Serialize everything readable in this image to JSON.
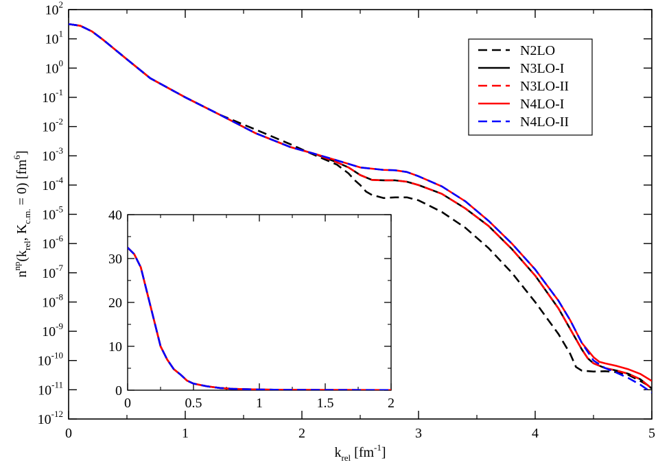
{
  "chart_data": {
    "type": "line",
    "title": "",
    "xlabel": "k",
    "xlabel_sub": "rel",
    "xlabel_unit_base": " [fm",
    "xlabel_unit_sup": "-1",
    "xlabel_unit_close": "]",
    "ylabel_parts": [
      "n",
      "np",
      "(k",
      "rel",
      ", K",
      "c.m.",
      " = 0) [fm",
      "6",
      "]"
    ],
    "x_scale": "linear",
    "y_scale": "log",
    "xlim": [
      0,
      5
    ],
    "ylim": [
      1e-12,
      100
    ],
    "x_ticks": [
      "0",
      "1",
      "2",
      "3",
      "4",
      "5"
    ],
    "y_tick_mantissa": "10",
    "y_tick_exponents": [
      "-12",
      "-11",
      "-10",
      "-9",
      "-8",
      "-7",
      "-6",
      "-5",
      "-4",
      "-3",
      "-2",
      "-1",
      "0",
      "1",
      "2"
    ],
    "legend_position": "top-right",
    "series": [
      {
        "name": "N2LO",
        "color": "#000000",
        "dashed": true,
        "x": [
          0,
          0.1,
          0.2,
          0.3,
          0.5,
          0.7,
          1.0,
          1.3,
          1.6,
          1.9,
          2.1,
          2.3,
          2.4,
          2.45,
          2.5,
          2.55,
          2.6,
          2.7,
          2.8,
          2.9,
          3.0,
          3.2,
          3.4,
          3.6,
          3.8,
          4.0,
          4.2,
          4.3,
          4.35,
          4.4,
          4.5,
          4.6,
          4.7,
          4.8,
          4.9,
          5.0
        ],
        "y": [
          32,
          28,
          18,
          9,
          2,
          0.45,
          0.1,
          0.025,
          0.008,
          0.0025,
          0.0011,
          0.0005,
          0.00025,
          0.00015,
          0.0001,
          6e-05,
          4.6e-05,
          3.6e-05,
          3.8e-05,
          3.8e-05,
          3e-05,
          1.2e-05,
          3.5e-06,
          7e-07,
          1e-07,
          1e-08,
          8e-10,
          1.7e-10,
          6e-11,
          4.5e-11,
          4.2e-11,
          4.3e-11,
          4e-11,
          3.2e-11,
          2e-11,
          1.2e-11
        ]
      },
      {
        "name": "N3LO-I",
        "color": "#000000",
        "dashed": false,
        "x": [
          0,
          0.1,
          0.2,
          0.3,
          0.5,
          0.7,
          1.0,
          1.3,
          1.6,
          1.9,
          2.1,
          2.3,
          2.4,
          2.5,
          2.6,
          2.7,
          2.8,
          2.9,
          3.0,
          3.2,
          3.4,
          3.6,
          3.8,
          4.0,
          4.2,
          4.3,
          4.4,
          4.45,
          4.5,
          4.6,
          4.7,
          4.8,
          4.9,
          5.0
        ],
        "y": [
          32,
          28,
          18,
          9,
          2,
          0.45,
          0.1,
          0.025,
          0.006,
          0.002,
          0.0012,
          0.0006,
          0.0004,
          0.00022,
          0.00015,
          0.000145,
          0.000145,
          0.00013,
          0.0001,
          5e-05,
          1.6e-05,
          4e-06,
          6.5e-07,
          8e-08,
          6e-09,
          1.2e-09,
          2.4e-10,
          1.2e-10,
          8e-11,
          5.5e-11,
          4.5e-11,
          3.5e-11,
          2.3e-11,
          1.1e-11
        ]
      },
      {
        "name": "N3LO-II",
        "color": "#ff0000",
        "dashed": true,
        "x": [
          0,
          0.1,
          0.2,
          0.3,
          0.5,
          0.7,
          1.0,
          1.3,
          1.6,
          1.9,
          2.1,
          2.3,
          2.4,
          2.5,
          2.6,
          2.7,
          2.8,
          2.9,
          3.0,
          3.2,
          3.4,
          3.6,
          3.8,
          4.0,
          4.2,
          4.3,
          4.4,
          4.45,
          4.5,
          4.6,
          4.7,
          4.8,
          4.9,
          5.0
        ],
        "y": [
          32,
          28,
          18,
          9,
          2,
          0.45,
          0.1,
          0.025,
          0.006,
          0.002,
          0.0012,
          0.0006,
          0.0004,
          0.00022,
          0.00015,
          0.000145,
          0.000145,
          0.00013,
          0.0001,
          5e-05,
          1.6e-05,
          4e-06,
          6.5e-07,
          8e-08,
          6e-09,
          1.2e-09,
          2.4e-10,
          1.2e-10,
          8e-11,
          5.5e-11,
          4.5e-11,
          3.5e-11,
          2.3e-11,
          1.1e-11
        ]
      },
      {
        "name": "N4LO-I",
        "color": "#ff0000",
        "dashed": false,
        "x": [
          0,
          0.1,
          0.2,
          0.3,
          0.5,
          0.7,
          1.0,
          1.3,
          1.6,
          1.9,
          2.1,
          2.3,
          2.5,
          2.7,
          2.8,
          2.9,
          3.0,
          3.2,
          3.4,
          3.6,
          3.8,
          4.0,
          4.2,
          4.3,
          4.4,
          4.5,
          4.55,
          4.6,
          4.7,
          4.8,
          4.9,
          5.0
        ],
        "y": [
          32,
          28,
          18,
          9,
          2,
          0.45,
          0.1,
          0.025,
          0.006,
          0.002,
          0.0012,
          0.0007,
          0.0004,
          0.00033,
          0.00032,
          0.00028,
          0.0002,
          9e-05,
          2.8e-05,
          6e-06,
          1e-06,
          1.3e-07,
          1.1e-08,
          2.4e-09,
          4e-10,
          1.3e-10,
          9e-11,
          8e-11,
          6.5e-11,
          5e-11,
          3.5e-11,
          2e-11
        ]
      },
      {
        "name": "N4LO-II",
        "color": "#0000ff",
        "dashed": true,
        "x": [
          0,
          0.1,
          0.2,
          0.3,
          0.5,
          0.7,
          1.0,
          1.3,
          1.6,
          1.9,
          2.1,
          2.3,
          2.5,
          2.7,
          2.8,
          2.9,
          3.0,
          3.2,
          3.4,
          3.6,
          3.8,
          4.0,
          4.2,
          4.3,
          4.4,
          4.5,
          4.6,
          4.7,
          4.8,
          4.9,
          5.0
        ],
        "y": [
          32,
          28,
          18,
          9,
          2,
          0.45,
          0.1,
          0.025,
          0.006,
          0.002,
          0.0012,
          0.0007,
          0.0004,
          0.00033,
          0.00032,
          0.00028,
          0.0002,
          9e-05,
          2.8e-05,
          6e-06,
          1e-06,
          1.3e-07,
          1.1e-08,
          2.4e-09,
          4e-10,
          1e-10,
          5.5e-11,
          3.8e-11,
          2.5e-11,
          1.5e-11,
          8e-12
        ]
      }
    ],
    "inset": {
      "type": "line",
      "x_scale": "linear",
      "y_scale": "linear",
      "xlim": [
        0,
        2
      ],
      "ylim": [
        0,
        40
      ],
      "x_ticks": [
        "0",
        "0.5",
        "1",
        "1.5",
        "2"
      ],
      "y_ticks": [
        "0",
        "10",
        "20",
        "30",
        "40"
      ],
      "x": [
        0,
        0.05,
        0.1,
        0.15,
        0.2,
        0.25,
        0.3,
        0.35,
        0.4,
        0.45,
        0.5,
        0.6,
        0.7,
        0.8,
        1.0,
        1.2,
        1.5,
        2.0
      ],
      "y": [
        32.5,
        31,
        28,
        22,
        16,
        10,
        7,
        4.8,
        3.6,
        2.2,
        1.5,
        0.9,
        0.5,
        0.3,
        0.15,
        0.08,
        0.05,
        0.03
      ],
      "series_order": [
        "N3LO-I",
        "N3LO-II",
        "N4LO-I",
        "N4LO-II"
      ]
    }
  }
}
